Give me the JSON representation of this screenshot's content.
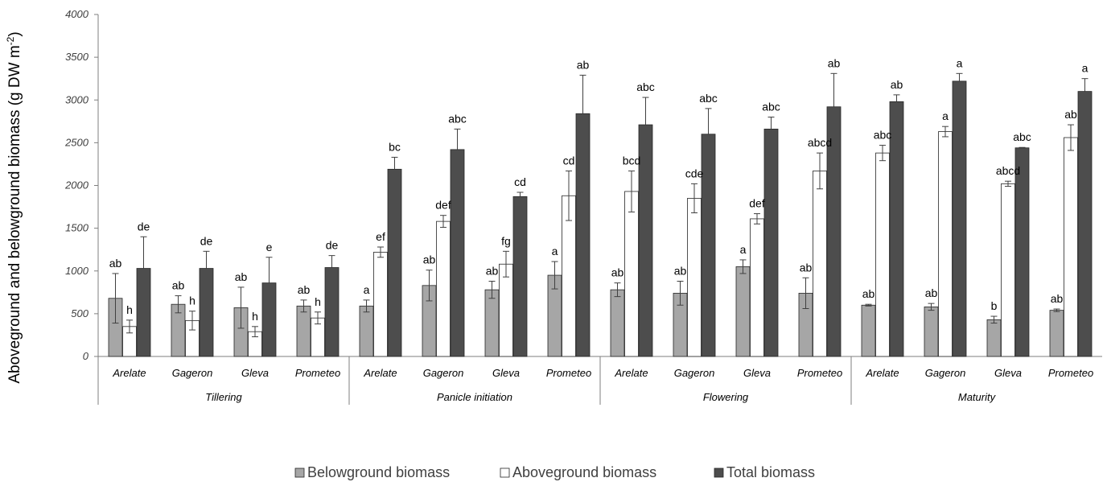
{
  "chart_data": {
    "type": "bar",
    "ylabel_main": "Aboveground and belowground biomass (g  DW m",
    "ylabel_sup": "-2",
    "ylabel_close": ")",
    "ylim": [
      0,
      4000
    ],
    "yticks": [
      "0",
      "500",
      "1000",
      "1500",
      "2000",
      "2500",
      "3000",
      "3500",
      "4000"
    ],
    "legend_position": "bottom",
    "series_colors": [
      "#a6a6a6",
      "#ffffff",
      "#4d4d4d"
    ],
    "series": [
      {
        "name": "Belowground biomass"
      },
      {
        "name": "Aboveground biomass"
      },
      {
        "name": "Total biomass"
      }
    ],
    "groups": [
      {
        "stage": "Tillering",
        "cultivars": [
          {
            "name": "Arelate",
            "values": [
              680,
              350,
              1030
            ],
            "errors": [
              290,
              75,
              370
            ],
            "labels": [
              "ab",
              "h",
              "de"
            ]
          },
          {
            "name": "Gageron",
            "values": [
              610,
              420,
              1030
            ],
            "errors": [
              100,
              110,
              200
            ],
            "labels": [
              "ab",
              "h",
              "de"
            ]
          },
          {
            "name": "Gleva",
            "values": [
              570,
              290,
              860
            ],
            "errors": [
              240,
              60,
              300
            ],
            "labels": [
              "ab",
              "h",
              "e"
            ]
          },
          {
            "name": "Prometeo",
            "values": [
              590,
              450,
              1040
            ],
            "errors": [
              70,
              70,
              140
            ],
            "labels": [
              "ab",
              "h",
              "de"
            ]
          }
        ]
      },
      {
        "stage": "Panicle initiation",
        "cultivars": [
          {
            "name": "Arelate",
            "values": [
              590,
              1220,
              2190
            ],
            "errors": [
              70,
              60,
              140
            ],
            "labels": [
              "a",
              "ef",
              "bc"
            ]
          },
          {
            "name": "Gageron",
            "values": [
              830,
              1580,
              2420
            ],
            "errors": [
              180,
              70,
              240
            ],
            "labels": [
              "ab",
              "def",
              "abc"
            ]
          },
          {
            "name": "Gleva",
            "values": [
              780,
              1080,
              1870
            ],
            "errors": [
              100,
              150,
              50
            ],
            "labels": [
              "ab",
              "fg",
              "cd"
            ]
          },
          {
            "name": "Prometeo",
            "values": [
              950,
              1880,
              2840
            ],
            "errors": [
              160,
              290,
              450
            ],
            "labels": [
              "a",
              "cd",
              "ab"
            ]
          }
        ]
      },
      {
        "stage": "Flowering",
        "cultivars": [
          {
            "name": "Arelate",
            "values": [
              780,
              1930,
              2710
            ],
            "errors": [
              80,
              240,
              320
            ],
            "labels": [
              "ab",
              "bcd",
              "abc"
            ]
          },
          {
            "name": "Gageron",
            "values": [
              740,
              1850,
              2600
            ],
            "errors": [
              140,
              170,
              300
            ],
            "labels": [
              "ab",
              "cde",
              "abc"
            ]
          },
          {
            "name": "Gleva",
            "values": [
              1050,
              1610,
              2660
            ],
            "errors": [
              80,
              60,
              140
            ],
            "labels": [
              "a",
              "def",
              "abc"
            ]
          },
          {
            "name": "Prometeo",
            "values": [
              740,
              2170,
              2920
            ],
            "errors": [
              180,
              210,
              390
            ],
            "labels": [
              "ab",
              "abcd",
              "ab"
            ]
          }
        ]
      },
      {
        "stage": "Maturity",
        "cultivars": [
          {
            "name": "Arelate",
            "values": [
              600,
              2380,
              2980
            ],
            "errors": [
              10,
              90,
              80
            ],
            "labels": [
              "ab",
              "abc",
              "ab"
            ]
          },
          {
            "name": "Gageron",
            "values": [
              580,
              2630,
              3220
            ],
            "errors": [
              40,
              60,
              90
            ],
            "labels": [
              "ab",
              "a",
              "a"
            ]
          },
          {
            "name": "Gleva",
            "values": [
              430,
              2020,
              2440
            ],
            "errors": [
              40,
              30,
              5
            ],
            "labels": [
              "b",
              "abcd",
              "abc"
            ]
          },
          {
            "name": "Prometeo",
            "values": [
              540,
              2560,
              3100
            ],
            "errors": [
              15,
              150,
              150
            ],
            "labels": [
              "ab",
              "ab",
              "a"
            ]
          }
        ]
      }
    ],
    "highlighted_labels": [
      {
        "group": 1,
        "cultivar": 3,
        "series": 1,
        "color": "#e02020"
      },
      {
        "group": 1,
        "cultivar": 3,
        "series": 2,
        "color": "#e02020"
      }
    ]
  }
}
